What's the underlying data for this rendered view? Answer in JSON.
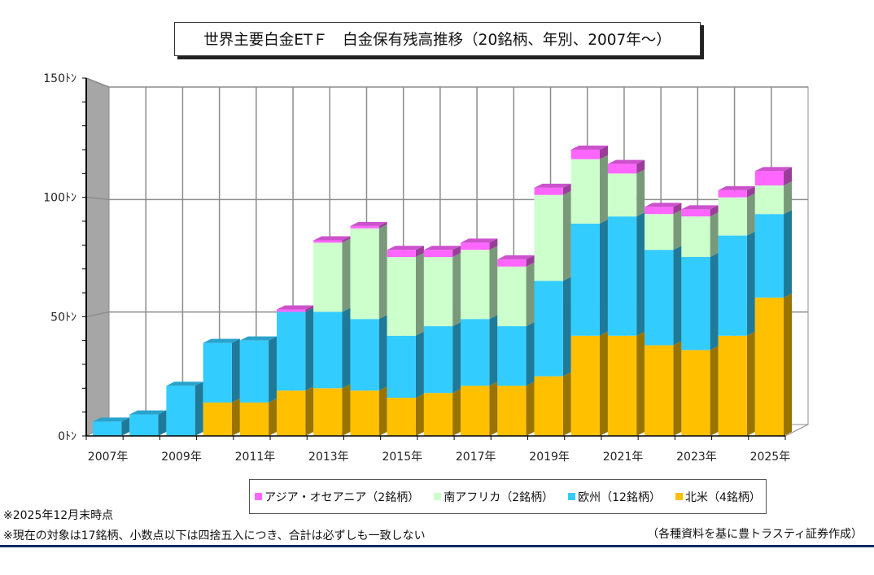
{
  "chart_data": {
    "type": "bar",
    "stacked": true,
    "style": "3d",
    "title": "世界主要白金ETＦ　白金保有残高推移（20銘柄、年別、2007年～）",
    "xlabel": "",
    "ylabel": "",
    "ylim": [
      0,
      150
    ],
    "yticks": [
      0,
      50,
      100,
      150
    ],
    "ytick_labels": [
      "0ﾄﾝ",
      "50ﾄﾝ",
      "100ﾄﾝ",
      "150ﾄﾝ"
    ],
    "categories": [
      "2007",
      "2008",
      "2009",
      "2010",
      "2011",
      "2012",
      "2013",
      "2014",
      "2015",
      "2016",
      "2017",
      "2018",
      "2019",
      "2020",
      "2021",
      "2022",
      "2023",
      "2024",
      "2025"
    ],
    "xtick_labels": [
      "2007年",
      "2009年",
      "2011年",
      "2013年",
      "2015年",
      "2017年",
      "2019年",
      "2021年",
      "2023年",
      "2025年"
    ],
    "grid": true,
    "legend_position": "bottom",
    "series": [
      {
        "name": "北米（4銘柄）",
        "color": "#ffc000",
        "values": [
          0,
          0,
          0,
          14,
          14,
          19,
          20,
          19,
          16,
          18,
          21,
          21,
          25,
          42,
          42,
          38,
          36,
          42,
          58
        ]
      },
      {
        "name": "欧州（12銘柄）",
        "color": "#33ccff",
        "values": [
          6,
          9,
          21,
          25,
          26,
          33,
          32,
          30,
          26,
          28,
          28,
          25,
          40,
          47,
          50,
          40,
          39,
          42,
          35
        ]
      },
      {
        "name": "南アフリカ（2銘柄）",
        "color": "#ccffcc",
        "values": [
          0,
          0,
          0,
          0,
          0,
          0,
          29,
          38,
          33,
          29,
          29,
          25,
          36,
          27,
          18,
          15,
          17,
          16,
          12
        ]
      },
      {
        "name": "アジア・オセアニア（2銘柄）",
        "color": "#ff66ff",
        "values": [
          0,
          0,
          0,
          0,
          0,
          1,
          1,
          1,
          3,
          3,
          3,
          3,
          3,
          4,
          4,
          3,
          3,
          3,
          6
        ]
      }
    ],
    "legend_order": [
      "アジア・オセアニア（2銘柄）",
      "南アフリカ（2銘柄）",
      "欧州（12銘柄）",
      "北米（4銘柄）"
    ]
  },
  "header": {
    "title": "世界主要白金ETＦ　白金保有残高推移（20銘柄、年別、2007年～）"
  },
  "legend": {
    "items": [
      {
        "label": "アジア・オセアニア（2銘柄）",
        "color": "#ff66ff"
      },
      {
        "label": "南アフリカ（2銘柄）",
        "color": "#ccffcc"
      },
      {
        "label": "欧州（12銘柄）",
        "color": "#33ccff"
      },
      {
        "label": "北米（4銘柄）",
        "color": "#ffc000"
      }
    ]
  },
  "notes": {
    "as_of": "※2025年12月末時点",
    "disclaimer": "※現在の対象は17銘柄、小数点以下は四捨五入につき、合計は必ずしも一致しない",
    "source": "（各種資料を基に豊トラスティ証券作成）"
  }
}
